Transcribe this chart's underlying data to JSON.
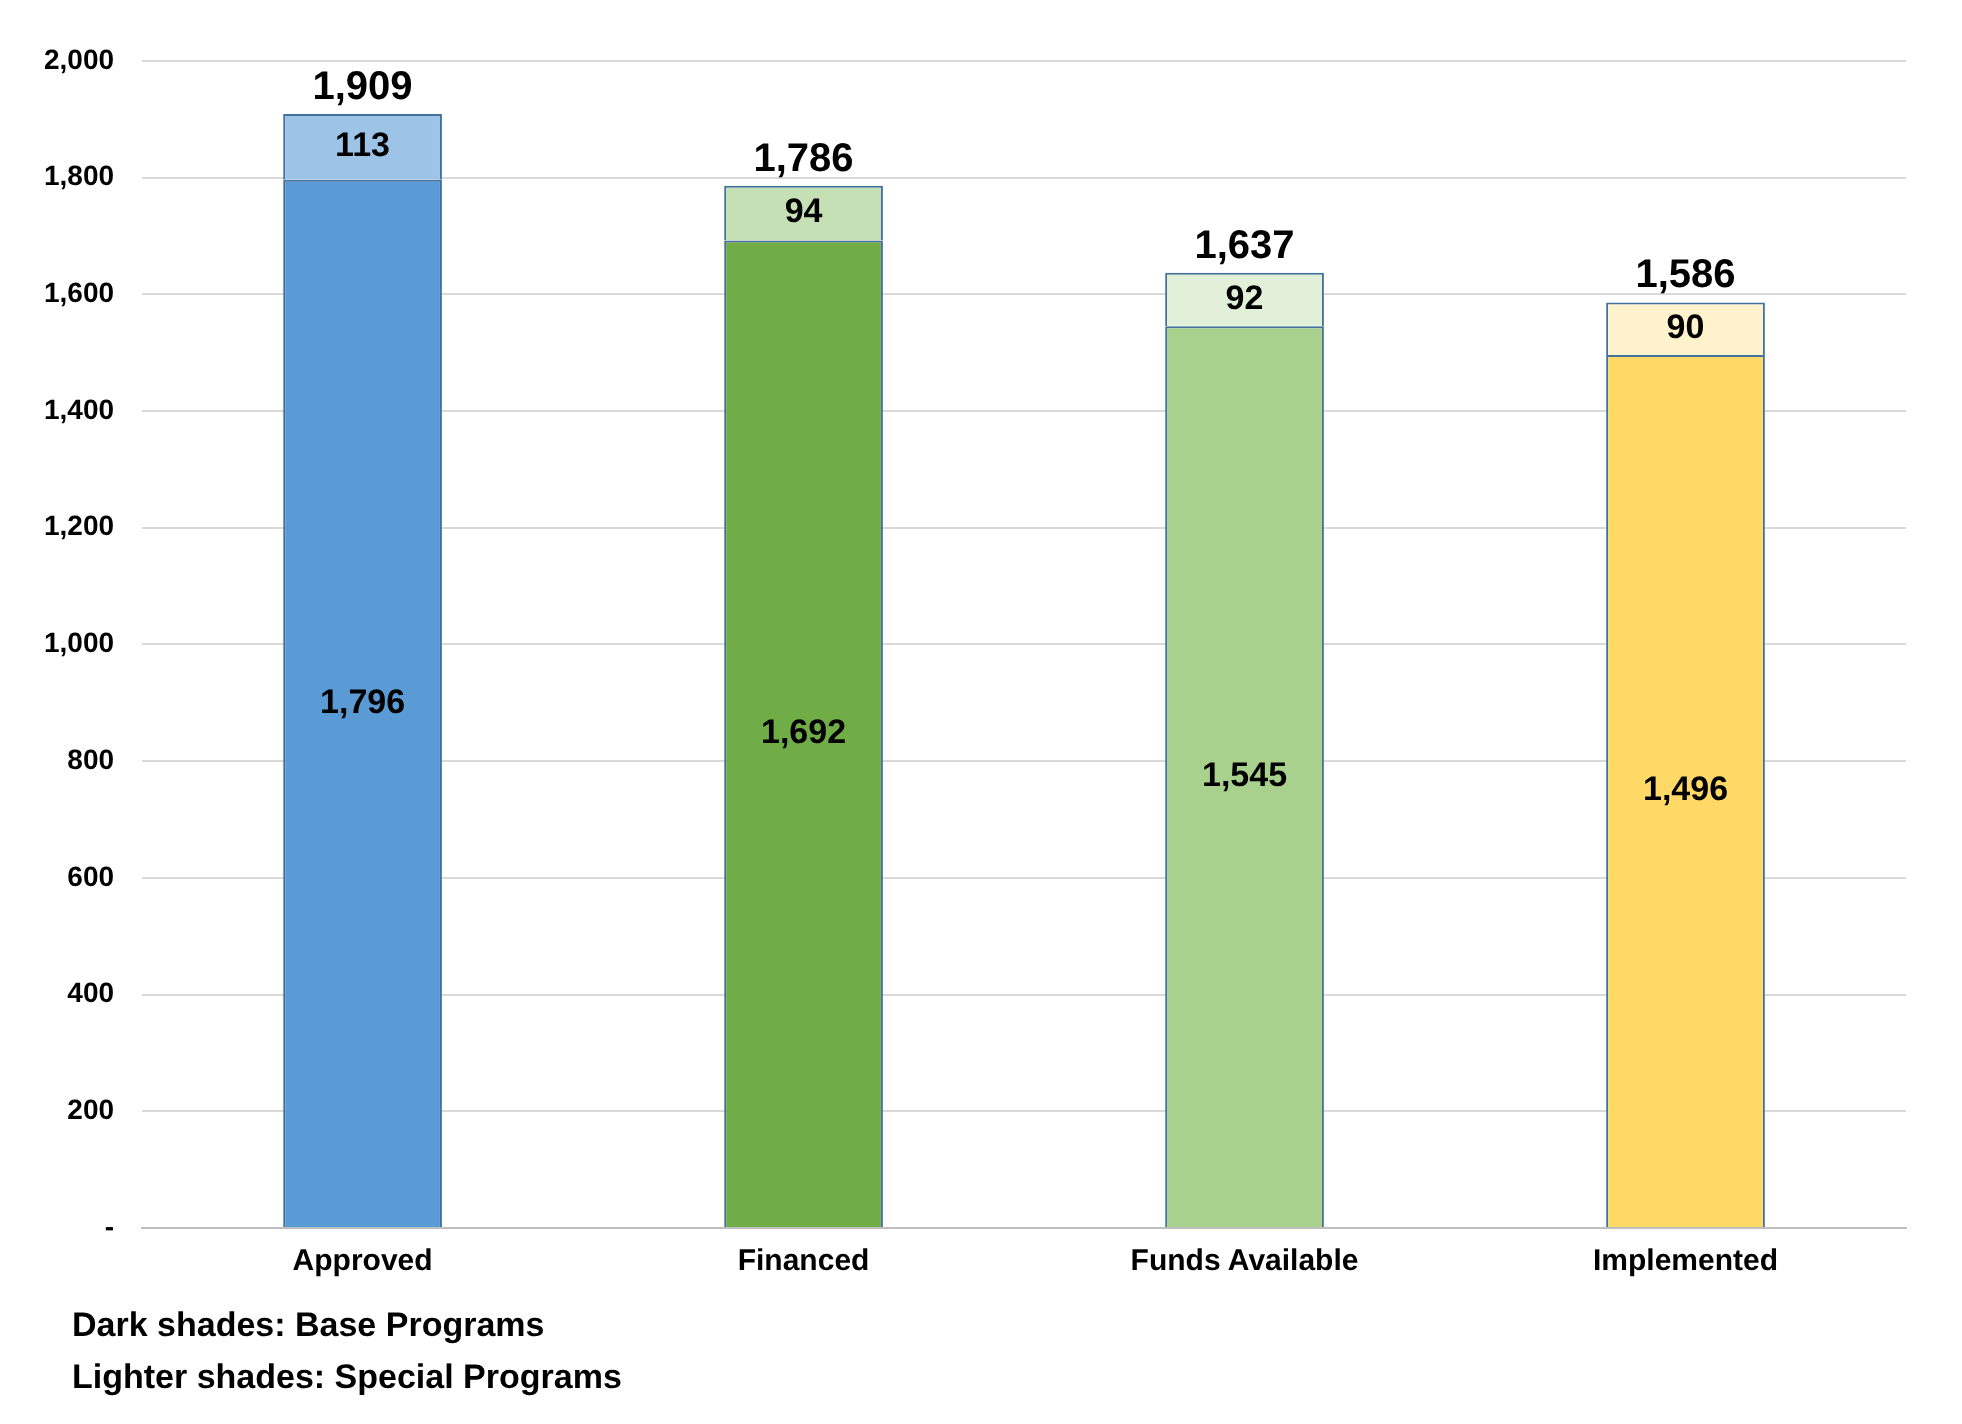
{
  "chart_data": {
    "type": "bar",
    "stacked": true,
    "categories": [
      "Approved",
      "Financed",
      "Funds Available",
      "Implemented"
    ],
    "series": [
      {
        "colors": [
          "#5b9bd5",
          "#70ad47",
          "#a9d18e",
          "#ffd966"
        ],
        "values": [
          1796,
          1692,
          1545,
          1496
        ],
        "value_labels": [
          "1,796",
          "1,692",
          "1,545",
          "1,496"
        ]
      },
      {
        "colors": [
          "#9dc3e6",
          "#c5e0b4",
          "#e2f0d9",
          "#fff2cc"
        ],
        "values": [
          113,
          94,
          92,
          90
        ],
        "value_labels": [
          "113",
          "94",
          "92",
          "90"
        ]
      }
    ],
    "ylim": [
      0,
      2000
    ],
    "yticks": [
      {
        "value": 0,
        "label": "-"
      },
      200,
      400,
      600,
      800,
      {
        "value": 1000,
        "label": "1,000"
      },
      {
        "value": 1200,
        "label": "1,200"
      },
      {
        "value": 1400,
        "label": "1,400"
      },
      {
        "value": 1600,
        "label": "1,600"
      },
      {
        "value": 1800,
        "label": "1,800"
      },
      {
        "value": 2000,
        "label": "2,000"
      }
    ],
    "grid": "y",
    "legend": false,
    "totals": [
      "1,909",
      "1,786",
      "1,637",
      "1,586"
    ],
    "annotations": [
      "Dark shades: Base Programs",
      "Lighter shades: Special Programs"
    ]
  }
}
